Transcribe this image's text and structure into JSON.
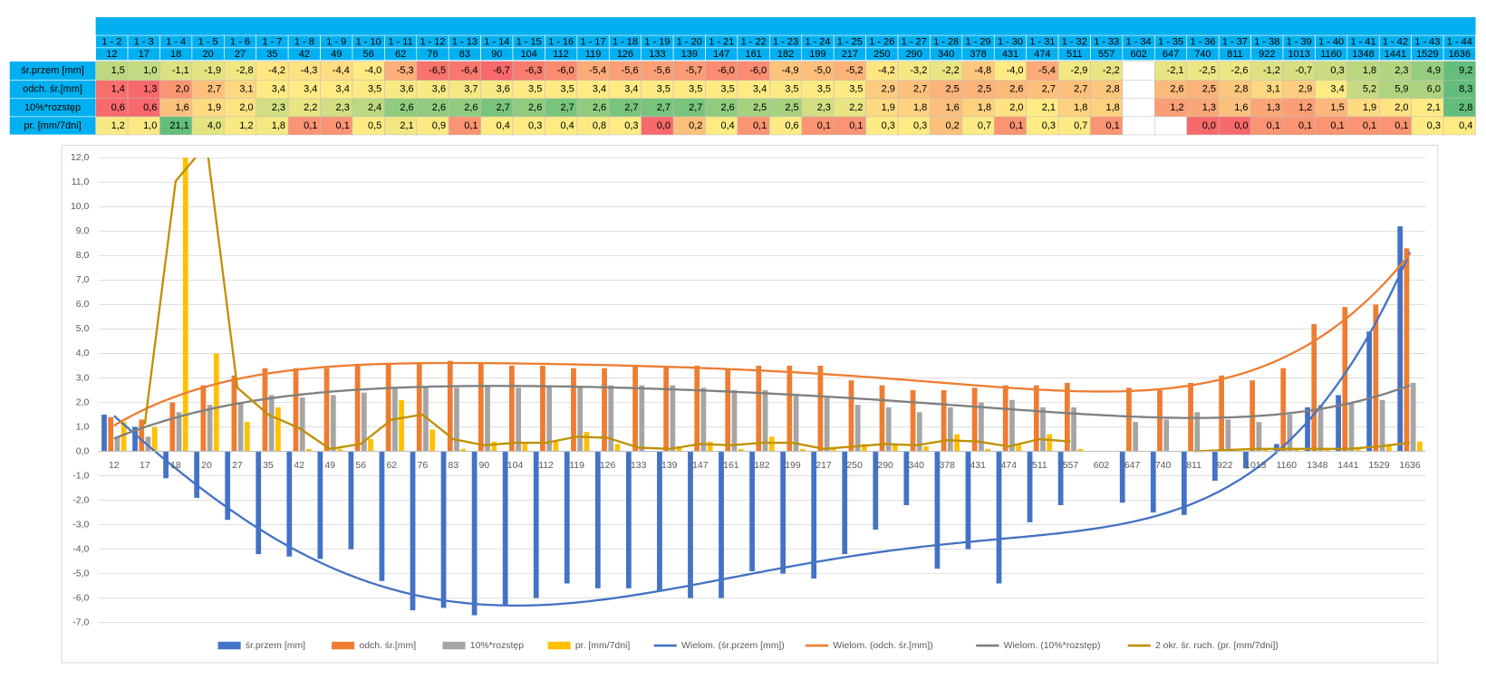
{
  "table": {
    "column_headers": [
      "1 - 2",
      "1 - 3",
      "1 - 4",
      "1 - 5",
      "1 - 6",
      "1 - 7",
      "1 - 8",
      "1 - 9",
      "1 - 10",
      "1 - 11",
      "1 - 12",
      "1 - 13",
      "1 - 14",
      "1 - 15",
      "1 - 16",
      "1 - 17",
      "1 - 18",
      "1 - 19",
      "1 - 20",
      "1 - 21",
      "1 - 22",
      "1 - 23",
      "1 - 24",
      "1 - 25",
      "1 - 26",
      "1 - 27",
      "1 - 28",
      "1 - 29",
      "1 - 30",
      "1 - 31",
      "1 - 32",
      "1 - 33",
      "1 - 34",
      "1 - 35",
      "1 - 36",
      "1 - 37",
      "1 - 38",
      "1 - 39",
      "1 - 40",
      "1 - 41",
      "1 - 42",
      "1 - 43",
      "1 - 44"
    ]
  },
  "chart_data": {
    "type": "bar",
    "categories": [
      "12",
      "17",
      "18",
      "20",
      "27",
      "35",
      "42",
      "49",
      "56",
      "62",
      "76",
      "83",
      "90",
      "104",
      "112",
      "119",
      "126",
      "133",
      "139",
      "147",
      "161",
      "182",
      "199",
      "217",
      "250",
      "290",
      "340",
      "378",
      "431",
      "474",
      "511",
      "557",
      "602",
      "647",
      "740",
      "811",
      "922",
      "1013",
      "1160",
      "1348",
      "1441",
      "1529",
      "1636"
    ],
    "series": [
      {
        "name": "śr.przem [mm]",
        "color": "#4472c4",
        "values": [
          1.5,
          1.0,
          -1.1,
          -1.9,
          -2.8,
          -4.2,
          -4.3,
          -4.4,
          -4.0,
          -5.3,
          -6.5,
          -6.4,
          -6.7,
          -6.3,
          -6.0,
          -5.4,
          -5.6,
          -5.6,
          -5.7,
          -6.0,
          -6.0,
          -4.9,
          -5.0,
          -5.2,
          -4.2,
          -3.2,
          -2.2,
          -4.8,
          -4.0,
          -5.4,
          -2.9,
          -2.2,
          null,
          -2.1,
          -2.5,
          -2.6,
          -1.2,
          -0.7,
          0.3,
          1.8,
          2.3,
          4.9,
          9.2
        ],
        "value_labels": [
          "1,5",
          "1,0",
          "-1,1",
          "-1,9",
          "-2,8",
          "-4,2",
          "-4,3",
          "-4,4",
          "-4,0",
          "-5,3",
          "-6,5",
          "-6,4",
          "-6,7",
          "-6,3",
          "-6,0",
          "-5,4",
          "-5,6",
          "-5,6",
          "-5,7",
          "-6,0",
          "-6,0",
          "-4,9",
          "-5,0",
          "-5,2",
          "-4,2",
          "-3,2",
          "-2,2",
          "-4,8",
          "-4,0",
          "-5,4",
          "-2,9",
          "-2,2",
          null,
          "-2,1",
          "-2,5",
          "-2,6",
          "-1,2",
          "-0,7",
          "0,3",
          "1,8",
          "2,3",
          "4,9",
          "9,2"
        ]
      },
      {
        "name": "odch. śr.[mm]",
        "color": "#ed7d31",
        "values": [
          1.4,
          1.3,
          2.0,
          2.7,
          3.1,
          3.4,
          3.4,
          3.4,
          3.5,
          3.6,
          3.6,
          3.7,
          3.6,
          3.5,
          3.5,
          3.4,
          3.4,
          3.5,
          3.5,
          3.5,
          3.4,
          3.5,
          3.5,
          3.5,
          2.9,
          2.7,
          2.5,
          2.5,
          2.6,
          2.7,
          2.7,
          2.8,
          null,
          2.6,
          2.5,
          2.8,
          3.1,
          2.9,
          3.4,
          5.2,
          5.9,
          6.0,
          8.3
        ],
        "value_labels": [
          "1,4",
          "1,3",
          "2,0",
          "2,7",
          "3,1",
          "3,4",
          "3,4",
          "3,4",
          "3,5",
          "3,6",
          "3,6",
          "3,7",
          "3,6",
          "3,5",
          "3,5",
          "3,4",
          "3,4",
          "3,5",
          "3,5",
          "3,5",
          "3,4",
          "3,5",
          "3,5",
          "3,5",
          "2,9",
          "2,7",
          "2,5",
          "2,5",
          "2,6",
          "2,7",
          "2,7",
          "2,8",
          null,
          "2,6",
          "2,5",
          "2,8",
          "3,1",
          "2,9",
          "3,4",
          "5,2",
          "5,9",
          "6,0",
          "8,3"
        ]
      },
      {
        "name": "10%*rozstęp",
        "color": "#a5a5a5",
        "values": [
          0.6,
          0.6,
          1.6,
          1.9,
          2.0,
          2.3,
          2.2,
          2.3,
          2.4,
          2.6,
          2.6,
          2.6,
          2.7,
          2.6,
          2.7,
          2.6,
          2.7,
          2.7,
          2.7,
          2.6,
          2.5,
          2.5,
          2.3,
          2.2,
          1.9,
          1.8,
          1.6,
          1.8,
          2.0,
          2.1,
          1.8,
          1.8,
          null,
          1.2,
          1.3,
          1.6,
          1.3,
          1.2,
          1.5,
          1.9,
          2.0,
          2.1,
          2.8
        ],
        "value_labels": [
          "0,6",
          "0,6",
          "1,6",
          "1,9",
          "2,0",
          "2,3",
          "2,2",
          "2,3",
          "2,4",
          "2,6",
          "2,6",
          "2,6",
          "2,7",
          "2,6",
          "2,7",
          "2,6",
          "2,7",
          "2,7",
          "2,7",
          "2,6",
          "2,5",
          "2,5",
          "2,3",
          "2,2",
          "1,9",
          "1,8",
          "1,6",
          "1,8",
          "2,0",
          "2,1",
          "1,8",
          "1,8",
          null,
          "1,2",
          "1,3",
          "1,6",
          "1,3",
          "1,2",
          "1,5",
          "1,9",
          "2,0",
          "2,1",
          "2,8"
        ]
      },
      {
        "name": "pr. [mm/7dni]",
        "color": "#ffc000",
        "values": [
          1.2,
          1.0,
          21.1,
          4.0,
          1.2,
          1.8,
          0.1,
          0.1,
          0.5,
          2.1,
          0.9,
          0.1,
          0.4,
          0.3,
          0.4,
          0.8,
          0.3,
          0.0,
          0.2,
          0.4,
          0.1,
          0.6,
          0.1,
          0.1,
          0.3,
          0.3,
          0.2,
          0.7,
          0.1,
          0.3,
          0.7,
          0.1,
          null,
          null,
          0.0,
          0.0,
          0.1,
          0.1,
          0.1,
          0.1,
          0.1,
          0.3,
          0.4
        ],
        "value_labels": [
          "1,2",
          "1,0",
          "21,1",
          "4,0",
          "1,2",
          "1,8",
          "0,1",
          "0,1",
          "0,5",
          "2,1",
          "0,9",
          "0,1",
          "0,4",
          "0,3",
          "0,4",
          "0,8",
          "0,3",
          "0,0",
          "0,2",
          "0,4",
          "0,1",
          "0,6",
          "0,1",
          "0,1",
          "0,3",
          "0,3",
          "0,2",
          "0,7",
          "0,1",
          "0,3",
          "0,7",
          "0,1",
          null,
          null,
          "0,0",
          "0,0",
          "0,1",
          "0,1",
          "0,1",
          "0,1",
          "0,1",
          "0,3",
          "0,4"
        ]
      }
    ],
    "trendlines": [
      {
        "name": "Wielom. (śr.przem [mm])",
        "color": "#4472c4",
        "series": 0,
        "method": "polynomial"
      },
      {
        "name": "Wielom. (odch. śr.[mm])",
        "color": "#ed7d31",
        "series": 1,
        "method": "polynomial"
      },
      {
        "name": "Wielom. (10%*rozstęp)",
        "color": "#7f7f7f",
        "series": 2,
        "method": "polynomial"
      },
      {
        "name": "2 okr. śr. ruch. (pr. [mm/7dni])",
        "color": "#bf9000",
        "series": 3,
        "method": "moving_average",
        "period": 2
      }
    ],
    "ylim": [
      -7,
      12
    ],
    "yticks": [
      {
        "value": -7,
        "label": "-7,0"
      },
      {
        "value": -6,
        "label": "-6,0"
      },
      {
        "value": -5,
        "label": "-5,0"
      },
      {
        "value": -4,
        "label": "-4,0"
      },
      {
        "value": -3,
        "label": "-3,0"
      },
      {
        "value": -2,
        "label": "-2,0"
      },
      {
        "value": -1,
        "label": "-1,0"
      },
      {
        "value": 0,
        "label": "0,0"
      },
      {
        "value": 1,
        "label": "1,0"
      },
      {
        "value": 2,
        "label": "2,0"
      },
      {
        "value": 3,
        "label": "3,0"
      },
      {
        "value": 4,
        "label": "4,0"
      },
      {
        "value": 5,
        "label": "5,0"
      },
      {
        "value": 6,
        "label": "6,0"
      },
      {
        "value": 7,
        "label": "7,0"
      },
      {
        "value": 8,
        "label": "8,0"
      },
      {
        "value": 9,
        "label": "9,0"
      },
      {
        "value": 10,
        "label": "10,0"
      },
      {
        "value": 11,
        "label": "11,0"
      },
      {
        "value": 12,
        "label": "12,0"
      }
    ],
    "grid": true,
    "legend": "bottom"
  }
}
